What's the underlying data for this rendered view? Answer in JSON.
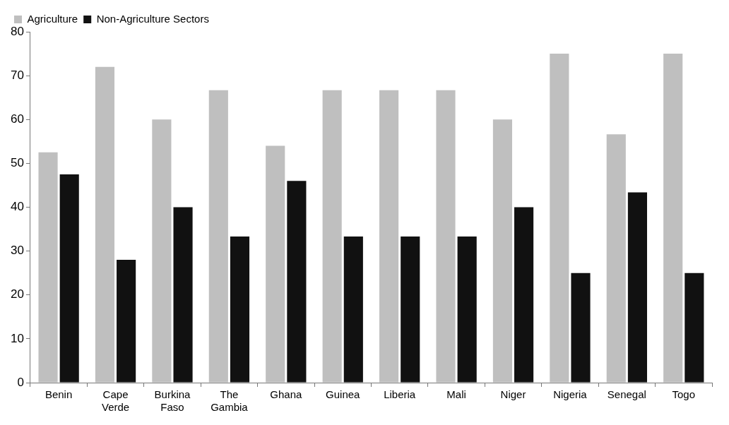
{
  "chart_data": {
    "type": "bar",
    "categories": [
      "Benin",
      "Cape Verde",
      "Burkina Faso",
      "The Gambia",
      "Ghana",
      "Guinea",
      "Liberia",
      "Mali",
      "Niger",
      "Nigeria",
      "Senegal",
      "Togo"
    ],
    "series": [
      {
        "name": "Agriculture",
        "color": "#bfbfbf",
        "values": [
          52.5,
          72,
          60,
          66.7,
          54,
          66.7,
          66.7,
          66.7,
          60,
          75,
          56.6,
          75
        ]
      },
      {
        "name": "Non-Agriculture Sectors",
        "color": "#111111",
        "values": [
          47.5,
          28,
          40,
          33.3,
          46,
          33.3,
          33.3,
          33.3,
          40,
          25,
          43.4,
          25
        ]
      }
    ],
    "ylim": [
      0,
      80
    ],
    "yticks": [
      0,
      10,
      20,
      30,
      40,
      50,
      60,
      70,
      80
    ],
    "grid": false,
    "legend": "top left"
  }
}
